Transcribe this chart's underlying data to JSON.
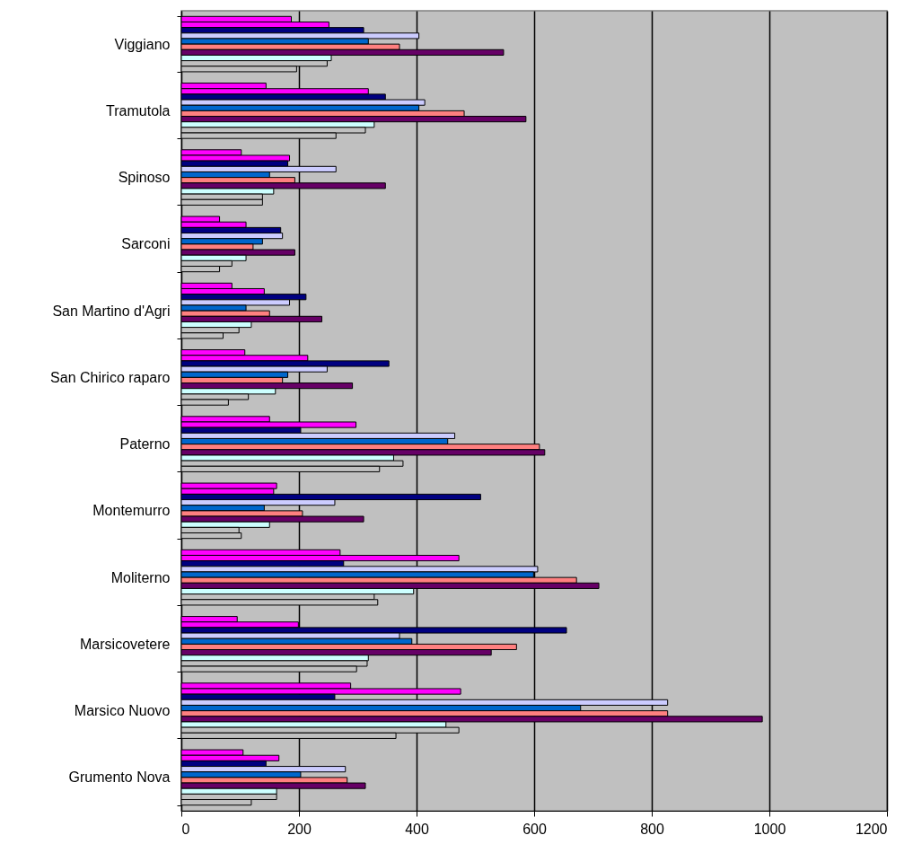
{
  "chart_data": {
    "type": "bar",
    "orientation": "horizontal",
    "categories": [
      "Viggiano",
      "Tramutola",
      "Spinoso",
      "Sarconi",
      "San Martino d'Agri",
      "San Chirico raparo",
      "Paterno",
      "Montemurro",
      "Moliterno",
      "Marsicovetere",
      "Marsico Nuovo",
      "Grumento Nova"
    ],
    "series": [
      {
        "color": "#ff00ff",
        "values": [
          187,
          144,
          102,
          65,
          86,
          108,
          150,
          162,
          270,
          95,
          288,
          105
        ]
      },
      {
        "color": "#ff00ff",
        "values": [
          251,
          318,
          184,
          110,
          141,
          215,
          297,
          157,
          472,
          199,
          475,
          166
        ]
      },
      {
        "color": "#000080",
        "values": [
          310,
          347,
          181,
          169,
          212,
          353,
          203,
          509,
          276,
          655,
          261,
          144
        ]
      },
      {
        "color": "#ccccff",
        "values": [
          404,
          414,
          263,
          172,
          184,
          248,
          465,
          261,
          606,
          371,
          827,
          279
        ]
      },
      {
        "color": "#0066cc",
        "values": [
          318,
          404,
          150,
          138,
          110,
          181,
          453,
          141,
          599,
          392,
          679,
          203
        ]
      },
      {
        "color": "#ff8080",
        "values": [
          371,
          481,
          193,
          122,
          150,
          172,
          609,
          206,
          672,
          570,
          827,
          282
        ]
      },
      {
        "color": "#660066",
        "values": [
          548,
          586,
          347,
          193,
          239,
          291,
          618,
          310,
          710,
          527,
          988,
          313
        ]
      },
      {
        "color": "#ccffff",
        "values": [
          255,
          328,
          157,
          110,
          119,
          160,
          361,
          150,
          395,
          318,
          450,
          162
        ]
      },
      {
        "color": "#c0c0c0",
        "values": [
          248,
          313,
          138,
          86,
          98,
          114,
          377,
          98,
          328,
          316,
          472,
          162
        ]
      },
      {
        "color": "#c0c0c0",
        "values": [
          196,
          263,
          138,
          65,
          71,
          80,
          337,
          102,
          334,
          298,
          365,
          119
        ]
      }
    ],
    "xlim": [
      0,
      1200
    ],
    "xticks": [
      0,
      200,
      400,
      600,
      800,
      1000,
      1200
    ],
    "grid": "x"
  }
}
